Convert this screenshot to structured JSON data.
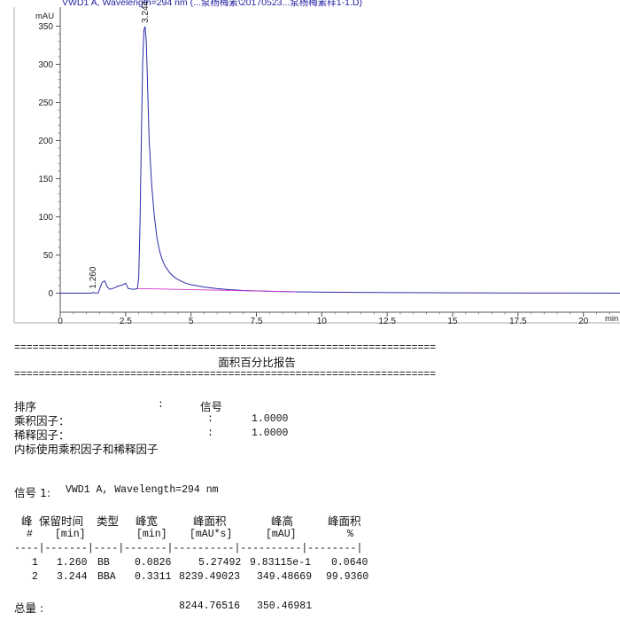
{
  "chart_data": {
    "type": "line",
    "title": "VWD1 A, Wavelength=294 nm (...泵杨梅素\\20170523...泵杨梅素样1-1.D)",
    "ylabel": "mAU",
    "xlabel": "min",
    "xlim": [
      0,
      21.4
    ],
    "ylim": [
      -25,
      375
    ],
    "x_ticks": [
      0,
      2.5,
      5,
      7.5,
      10,
      12.5,
      15,
      17.5,
      20
    ],
    "x_tick_labels": [
      "0",
      "2.5",
      "5",
      "7.5",
      "10",
      "12.5",
      "15",
      "17.5",
      "20"
    ],
    "y_ticks": [
      0,
      50,
      100,
      150,
      200,
      250,
      300,
      350
    ],
    "y_tick_labels": [
      "0",
      "50",
      "100",
      "150",
      "200",
      "250",
      "300",
      "350"
    ],
    "series": [
      {
        "color": "#2a2aa8",
        "x": [
          0,
          1.0,
          1.2,
          1.26,
          1.33,
          1.45,
          1.6,
          1.7,
          1.8,
          1.9,
          2.0,
          2.2,
          2.4,
          2.5,
          2.6,
          2.8,
          2.95,
          3.0,
          3.05,
          3.1,
          3.15,
          3.2,
          3.244,
          3.29,
          3.35,
          3.4,
          3.5,
          3.6,
          3.7,
          3.8,
          3.9,
          4.0,
          4.2,
          4.4,
          4.6,
          4.8,
          5.0,
          5.5,
          6.0,
          6.5,
          7.0,
          8.0,
          9.0,
          10.0,
          12.0,
          15.0,
          18.0,
          21.4
        ],
        "y": [
          0,
          0,
          0,
          1,
          0.2,
          0.3,
          14,
          16,
          8,
          5,
          6,
          9,
          11,
          13,
          6,
          5,
          6,
          20,
          90,
          200,
          300,
          345,
          349.5,
          330,
          260,
          200,
          140,
          100,
          72,
          55,
          44,
          36,
          26,
          20,
          16,
          13,
          11,
          8,
          6,
          4.5,
          3.5,
          2.5,
          1.8,
          1.3,
          0.8,
          0.4,
          0.2,
          0
        ]
      },
      {
        "color": "#cc33cc",
        "x": [
          2.95,
          9.0
        ],
        "y": [
          6,
          1.8
        ]
      }
    ],
    "annotations": [
      {
        "label": "1.260",
        "x": 1.26,
        "y": 1
      },
      {
        "label": "3.244",
        "x": 3.244,
        "y": 349.5
      }
    ],
    "grid": false,
    "legend": "none"
  },
  "report": {
    "rule": "=====================================================================",
    "title": "面积百分比报告",
    "sort_label": "排序",
    "colon": ":",
    "sort_value": "信号",
    "mult_label": "乘积因子：",
    "mult_value": "1.0000",
    "dil_label": "稀释因子：",
    "dil_value": "1.0000",
    "istd_note": "内标使用乘积因子和稀释因子",
    "signal_label": "信号 1:",
    "signal_value": "VWD1 A, Wavelength=294 nm",
    "headers": [
      "峰",
      "保留时间",
      "类型",
      "峰宽",
      "峰面积",
      "峰高",
      "峰面积"
    ],
    "units": [
      "#",
      "[min]",
      "",
      "[min]",
      "[mAU*s]",
      "[mAU]",
      "%"
    ],
    "separator": "----|-------|----|-------|----------|----------|--------|",
    "rows": [
      [
        "1",
        "1.260",
        "BB",
        "0.0826",
        "5.27492",
        "9.83115e-1",
        "0.0640"
      ],
      [
        "2",
        "3.244",
        "BBA",
        "0.3311",
        "8239.49023",
        "349.48669",
        "99.9360"
      ]
    ],
    "total_label": "总量 :",
    "total_area": "8244.76516",
    "total_height": "350.46981"
  }
}
